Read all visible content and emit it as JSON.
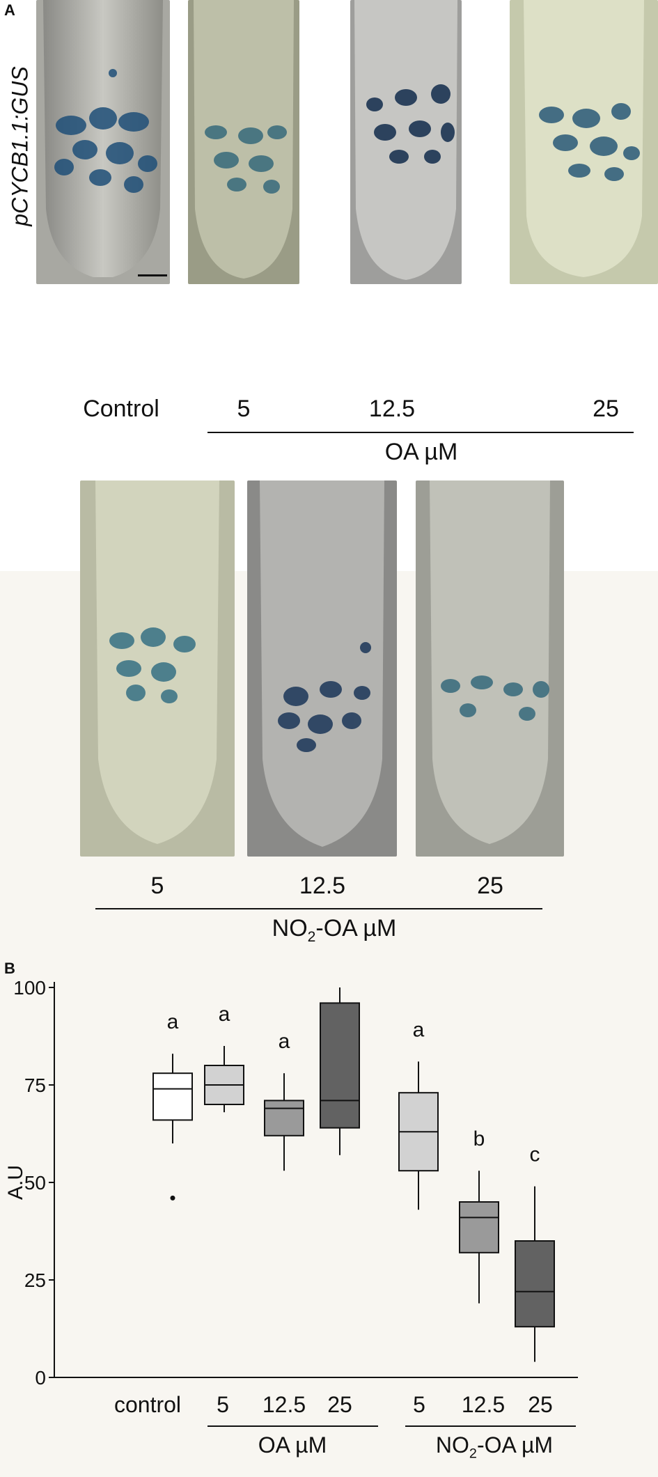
{
  "panel_a": {
    "label": "A",
    "reporter": "pCYCB1.1:GUS",
    "row1": {
      "labels": [
        "Control",
        "5",
        "12.5",
        "25"
      ],
      "group": "OA µM"
    },
    "row2": {
      "labels": [
        "5",
        "12.5",
        "25"
      ],
      "group_prefix": "NO",
      "group_sub": "2",
      "group_suffix": "-OA µM"
    }
  },
  "panel_b": {
    "label": "B",
    "group_oa": "OA µM",
    "group_no2_prefix": "NO",
    "group_no2_sub": "2",
    "group_no2_suffix": "-OA µM"
  },
  "chart_data": {
    "type": "box",
    "ylabel": "A.U",
    "ylim": [
      0,
      105
    ],
    "yticks": [
      0,
      25,
      50,
      75,
      100
    ],
    "categories": [
      "control",
      "5",
      "12.5",
      "25",
      "5",
      "12.5",
      "25"
    ],
    "groups": [
      {
        "label": "OA µM",
        "categories": [
          1,
          2,
          3
        ]
      },
      {
        "label": "NO2-OA µM",
        "categories": [
          4,
          5,
          6
        ]
      }
    ],
    "boxes": [
      {
        "category": "control",
        "min": 60,
        "q1": 66,
        "median": 74,
        "q3": 78,
        "max": 83,
        "outliers": [
          46
        ],
        "letter": "a",
        "fill": "#ffffff"
      },
      {
        "category": "5",
        "group": "OA µM",
        "min": 68,
        "q1": 70,
        "median": 75,
        "q3": 80,
        "max": 85,
        "outliers": [],
        "letter": "a",
        "fill": "#d2d2d2"
      },
      {
        "category": "12.5",
        "group": "OA µM",
        "min": 53,
        "q1": 62,
        "median": 69,
        "q3": 71,
        "max": 78,
        "outliers": [],
        "letter": "a",
        "fill": "#9a9a9a"
      },
      {
        "category": "25",
        "group": "OA µM",
        "min": 57,
        "q1": 64,
        "median": 71,
        "q3": 96,
        "max": 100,
        "outliers": [],
        "letter": "a",
        "fill": "#626262"
      },
      {
        "category": "5",
        "group": "NO2-OA µM",
        "min": 43,
        "q1": 53,
        "median": 63,
        "q3": 73,
        "max": 81,
        "outliers": [],
        "letter": "a",
        "fill": "#d2d2d2"
      },
      {
        "category": "12.5",
        "group": "NO2-OA µM",
        "min": 19,
        "q1": 32,
        "median": 41,
        "q3": 45,
        "max": 53,
        "outliers": [],
        "letter": "b",
        "fill": "#9a9a9a"
      },
      {
        "category": "25",
        "group": "NO2-OA µM",
        "min": 4,
        "q1": 13,
        "median": 22,
        "q3": 35,
        "max": 49,
        "outliers": [],
        "letter": "c",
        "fill": "#626262"
      }
    ]
  }
}
